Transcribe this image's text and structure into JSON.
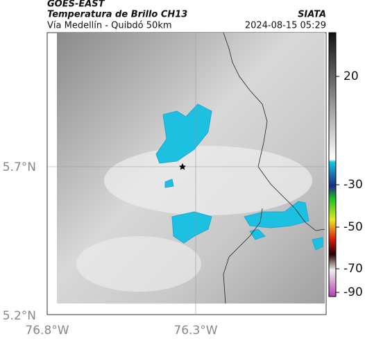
{
  "header": {
    "source": "GOES-EAST",
    "product": "Temperatura de Brillo CH13",
    "institution": "SIATA",
    "route": "Vía Medellín - Quibdó 50km",
    "timestamp": "2024-08-15 05:29"
  },
  "map": {
    "lat_labels": [
      "5.7°N",
      "5.2°N"
    ],
    "lon_labels": [
      "76.8°W",
      "76.3°W"
    ]
  },
  "colorbar": {
    "ticks": [
      20,
      -30,
      -50,
      -70,
      -90
    ]
  }
}
